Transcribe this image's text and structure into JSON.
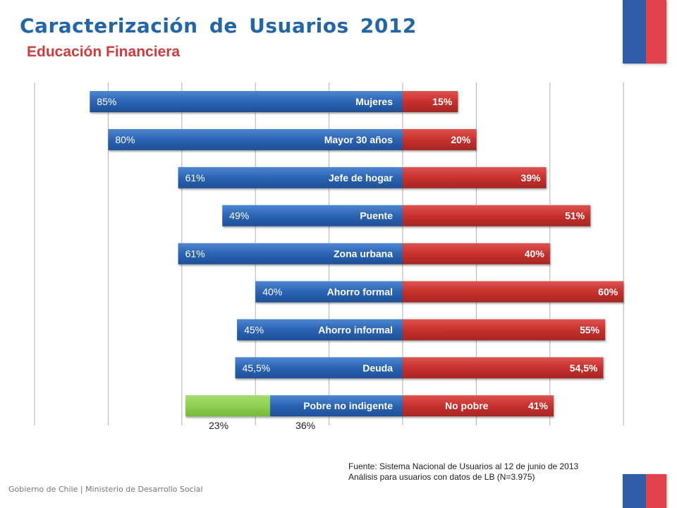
{
  "header": {
    "title": "Caracterización  de Usuarios 2012",
    "subtitle": "Educación Financiera"
  },
  "colors": {
    "title": "#2266a8",
    "subtitle": "#d23b3b",
    "blue_bar": "#2a64b4",
    "red_bar": "#c8302d",
    "green_bar": "#8ed050",
    "flag_blue": "#2e5ca8",
    "flag_red": "#e2404a"
  },
  "chart_data": {
    "type": "bar",
    "orientation": "horizontal-diverging",
    "grid": true,
    "rows": [
      {
        "label": "Mujeres",
        "left": 85,
        "right": 15,
        "left_label": "85%",
        "right_label": "15%"
      },
      {
        "label": "Mayor 30 años",
        "left": 80,
        "right": 20,
        "left_label": "80%",
        "right_label": "20%"
      },
      {
        "label": "Jefe de hogar",
        "left": 61,
        "right": 39,
        "left_label": "61%",
        "right_label": "39%"
      },
      {
        "label": "Puente",
        "left": 49,
        "right": 51,
        "left_label": "49%",
        "right_label": "51%"
      },
      {
        "label": "Zona urbana",
        "left": 61,
        "right": 40,
        "left_label": "61%",
        "right_label": "40%"
      },
      {
        "label": "Ahorro formal",
        "left": 40,
        "right": 60,
        "left_label": "40%",
        "right_label": "60%"
      },
      {
        "label": "Ahorro informal",
        "left": 45,
        "right": 55,
        "left_label": "45%",
        "right_label": "55%"
      },
      {
        "label": "Deuda",
        "left": 45.5,
        "right": 54.5,
        "left_label": "45,5%",
        "right_label": "54,5%"
      }
    ],
    "last_row": {
      "left_label": "Pobre no indigente",
      "left_value": 36,
      "left_value_label": "36%",
      "extra_value": 23,
      "extra_value_label": "23%",
      "right_label": "No pobre",
      "right_value": 41,
      "right_value_label": "41%"
    }
  },
  "source": {
    "line1": "Fuente: Sistema Nacional de Usuarios al 12 de junio de 2013",
    "line2": "Análisis para usuarios con datos de LB (N=3.975)"
  },
  "footer": "Gobierno de Chile | Ministerio de Desarrollo Social"
}
